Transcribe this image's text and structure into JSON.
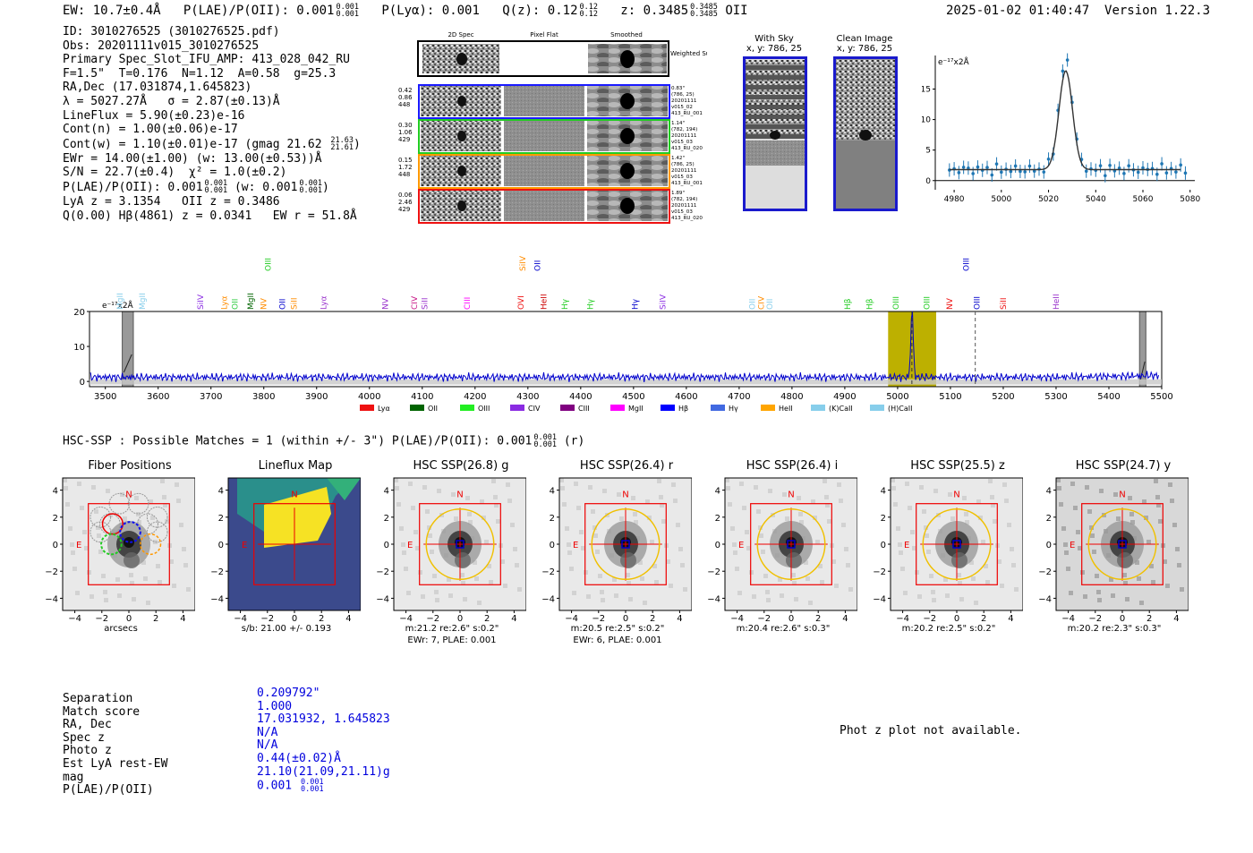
{
  "header": {
    "ew": "EW: 10.7±0.4Å",
    "plae_label": "P(LAE)/P(OII): 0.001",
    "plae_sup": "0.001",
    "plae_sub": "0.001",
    "plya": "P(Lyα): 0.001",
    "qz_label": "Q(z): 0.12",
    "qz_sup": "0.12",
    "qz_sub": "0.12",
    "z_label": "z: 0.3485",
    "z_sup": "0.3485",
    "z_sub": "0.3485",
    "z_line": "OII",
    "timestamp": "2025-01-02 01:40:47",
    "version": "Version 1.22.3"
  },
  "info": {
    "id": "ID: 3010276525 (3010276525.pdf)",
    "obs": "Obs: 20201111v015_3010276525",
    "primary": "Primary Spec_Slot_IFU_AMP: 413_028_042_RU",
    "fparams": "F=1.5\"  T=0.176  N=1.12  A=0.58  g=25.3",
    "radec": "RA,Dec (17.031874,1.645823)",
    "lambda": "λ = 5027.27Å   σ = 2.87(±0.13)Å",
    "lineflux": "LineFlux = 5.90(±0.23)e-16",
    "contn": "Cont(n) = 1.00(±0.06)e-17",
    "contw": "Cont(w) = 1.10(±0.01)e-17 (gmag 21.62",
    "contw_sup": "21.63",
    "contw_sub": "21.61",
    "contw_end": ")",
    "ewr": "EWr = 14.00(±1.00) (w: 13.00(±0.53))Å",
    "sn": "S/N = 22.7(±0.4)  χ² = 1.0(±0.2)",
    "plae": "P(LAE)/P(OII): 0.001",
    "plae_sup": "0.001",
    "plae_sub": "0.001",
    "plae_w": " (w: 0.001",
    "plae_w_sup": "0.001",
    "plae_w_sub": "0.001",
    "plae_w_end": ")",
    "lya": "LyA z = 3.1354   OII z = 0.3486",
    "q": "Q(0.00) Hβ(4861) z = 0.0341   EW r = 51.8Å"
  },
  "cutouts": {
    "col_labels": [
      "2D Spec",
      "Pixel Flat",
      "Smoothed"
    ],
    "weighted_sum": "Weighted Sum",
    "rows": [
      {
        "left": [
          "0.42",
          "0.86",
          "448"
        ],
        "right": [
          "0.83\"",
          "(786, 25)",
          "20201111",
          "v015_02",
          "413_RU_001"
        ],
        "color": "#1a1aff"
      },
      {
        "left": [
          "0.30",
          "1.06",
          "429"
        ],
        "right": [
          "1.14\"",
          "(782, 194)",
          "20201111",
          "v015_03",
          "413_RU_020"
        ],
        "color": "#22cc22"
      },
      {
        "left": [
          "0.15",
          "1.72",
          "448"
        ],
        "right": [
          "1.42\"",
          "(786, 25)",
          "20201111",
          "v015_03",
          "413_RU_001"
        ],
        "color": "#ff9900"
      },
      {
        "left": [
          "0.06",
          "2.46",
          "429"
        ],
        "right": [
          "1.89\"",
          "(782, 194)",
          "20201111",
          "v015_03",
          "413_RU_020"
        ],
        "color": "#ee1111"
      }
    ]
  },
  "sky": {
    "with_sky": "With Sky",
    "with_sky_xy": "x, y: 786, 25",
    "clean": "Clean Image",
    "clean_xy": "x, y: 786, 25"
  },
  "line_fit": {
    "yunit": "e⁻¹⁷x2Å",
    "xticks": [
      "4980",
      "5000",
      "5020",
      "5040",
      "5060",
      "5080"
    ],
    "yticks": [
      "0",
      "5",
      "10",
      "15"
    ]
  },
  "spectrum": {
    "yunit": "e⁻¹⁷x2Å",
    "xticks": [
      "3500",
      "3600",
      "3700",
      "3800",
      "3900",
      "4000",
      "4100",
      "4200",
      "4300",
      "4400",
      "4500",
      "4600",
      "4700",
      "4800",
      "4900",
      "5000",
      "5100",
      "5200",
      "5300",
      "5400",
      "5500"
    ],
    "yticks": [
      "20",
      "10",
      "0"
    ],
    "line_labels": [
      {
        "t": "MgII",
        "c": "#87ceeb",
        "w": 3528
      },
      {
        "t": "MgII",
        "c": "#87ceeb",
        "w": 3570
      },
      {
        "t": "SiIV",
        "c": "#8a2be2",
        "w": 3680
      },
      {
        "t": "Lyα",
        "c": "#ff8c00",
        "w": 3725
      },
      {
        "t": "OII",
        "c": "#2ecc40",
        "w": 3745
      },
      {
        "t": "MgII",
        "c": "#006400",
        "w": 3775
      },
      {
        "t": "NV",
        "c": "#ff8c00",
        "w": 3800
      },
      {
        "t": "OII",
        "c": "#0000cc",
        "w": 3835
      },
      {
        "t": "SiII",
        "c": "#ff8c00",
        "w": 3857
      },
      {
        "t": "Lyα",
        "c": "#9932cc",
        "w": 3913
      },
      {
        "t": "NV",
        "c": "#9932cc",
        "w": 4030
      },
      {
        "t": "CIV",
        "c": "#c71585",
        "w": 4085
      },
      {
        "t": "SiII",
        "c": "#9932cc",
        "w": 4105
      },
      {
        "t": "CIII",
        "c": "#ff00ff",
        "w": 4185
      },
      {
        "t": "OVI",
        "c": "#ee1111",
        "w": 4287
      },
      {
        "t": "HeII",
        "c": "#cc0000",
        "w": 4330
      },
      {
        "t": "Hγ",
        "c": "#22cc22",
        "w": 4370
      },
      {
        "t": "Hγ",
        "c": "#22cc22",
        "w": 4418
      },
      {
        "t": "Hγ",
        "c": "#0000cc",
        "w": 4503
      },
      {
        "t": "SiIV",
        "c": "#8a2be2",
        "w": 4555
      },
      {
        "t": "OII",
        "c": "#87ceeb",
        "w": 4725
      },
      {
        "t": "CIV",
        "c": "#ff8c00",
        "w": 4742
      },
      {
        "t": "OII",
        "c": "#87ceeb",
        "w": 4758
      },
      {
        "t": "Hβ",
        "c": "#22cc22",
        "w": 4905
      },
      {
        "t": "Hβ",
        "c": "#22cc22",
        "w": 4947
      },
      {
        "t": "OIII",
        "c": "#22cc22",
        "w": 4997
      },
      {
        "t": "OIII",
        "c": "#22cc22",
        "w": 5055
      },
      {
        "t": "NV",
        "c": "#ee1111",
        "w": 5098
      },
      {
        "t": "OIII",
        "c": "#0000cc",
        "w": 5150
      },
      {
        "t": "SiII",
        "c": "#ee1111",
        "w": 5200
      },
      {
        "t": "HeII",
        "c": "#9932cc",
        "w": 5300
      }
    ],
    "upper_labels": [
      {
        "t": "OIII",
        "c": "#22cc22",
        "w": 3808
      },
      {
        "t": "SiIV",
        "c": "#ff8c00",
        "w": 4290
      },
      {
        "t": "OII",
        "c": "#0000cc",
        "w": 4318
      },
      {
        "t": "OIII",
        "c": "#0000cc",
        "w": 5130
      }
    ],
    "legend": [
      {
        "t": "Lyα",
        "c": "#ee1111"
      },
      {
        "t": "OII",
        "c": "#006400"
      },
      {
        "t": "OIII",
        "c": "#22ee22"
      },
      {
        "t": "CIV",
        "c": "#8a2be2"
      },
      {
        "t": "CIII",
        "c": "#800080"
      },
      {
        "t": "MgII",
        "c": "#ff00ff"
      },
      {
        "t": "Hβ",
        "c": "#0000ff"
      },
      {
        "t": "Hγ",
        "c": "#4169e1"
      },
      {
        "t": "HeII",
        "c": "#ffa500"
      },
      {
        "t": "(K)CaII",
        "c": "#87ceeb"
      },
      {
        "t": "(H)CaII",
        "c": "#87ceeb"
      }
    ]
  },
  "hsc": {
    "title": "HSC-SSP : Possible Matches = 1 (within +/- 3\")  P(LAE)/P(OII): 0.001",
    "title_sup": "0.001",
    "title_sub": "0.001",
    "title_end": "(r)",
    "axis_ticks": [
      "4",
      "2",
      "0",
      "−2",
      "−4"
    ],
    "x_ticks": [
      "−4",
      "−2",
      "0",
      "2",
      "4"
    ],
    "panels": [
      {
        "title": "Fiber Positions",
        "cap1": "arcsecs",
        "cap2": "",
        "N": "N",
        "E": "E"
      },
      {
        "title": "Lineflux Map",
        "cap1": "s/b: 21.00 +/- 0.193",
        "cap2": "",
        "N": "N",
        "E": "E"
      },
      {
        "title": "HSC SSP(26.8) g",
        "cap1": "m:21.2  re:2.6\"  s:0.2\"",
        "cap2": "EWr: 7, PLAE: 0.001",
        "N": "N",
        "E": "E"
      },
      {
        "title": "HSC SSP(26.4) r",
        "cap1": "m:20.5  re:2.5\"  s:0.2\"",
        "cap2": "EWr: 6, PLAE: 0.001",
        "N": "N",
        "E": "E"
      },
      {
        "title": "HSC SSP(26.4) i",
        "cap1": "m:20.4  re:2.6\"  s:0.3\"",
        "cap2": "",
        "N": "N",
        "E": "E"
      },
      {
        "title": "HSC SSP(25.5) z",
        "cap1": "m:20.2  re:2.5\"  s:0.2\"",
        "cap2": "",
        "N": "N",
        "E": "E"
      },
      {
        "title": "HSC SSP(24.7) y",
        "cap1": "m:20.2  re:2.3\"  s:0.3\"",
        "cap2": "",
        "N": "N",
        "E": "E"
      }
    ]
  },
  "match": {
    "labels": [
      "Separation",
      "Match score",
      "RA, Dec",
      "Spec z",
      "Photo z",
      "Est LyA rest-EW",
      "mag",
      "P(LAE)/P(OII)"
    ],
    "values": [
      "0.209792\"",
      "1.000",
      "17.031932, 1.645823",
      "N/A",
      "N/A",
      "0.44(±0.02)Å",
      "21.10(21.09,21.11)g",
      "0.001"
    ],
    "plae_sup": "0.001",
    "plae_sub": "0.001"
  },
  "photz": "Phot z plot not available."
}
